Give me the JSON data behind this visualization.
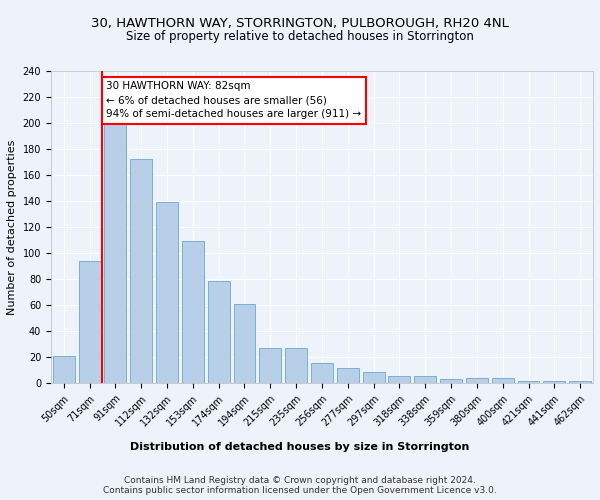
{
  "title": "30, HAWTHORN WAY, STORRINGTON, PULBOROUGH, RH20 4NL",
  "subtitle": "Size of property relative to detached houses in Storrington",
  "xlabel": "Distribution of detached houses by size in Storrington",
  "ylabel": "Number of detached properties",
  "bar_labels": [
    "50sqm",
    "71sqm",
    "91sqm",
    "112sqm",
    "132sqm",
    "153sqm",
    "174sqm",
    "194sqm",
    "215sqm",
    "235sqm",
    "256sqm",
    "277sqm",
    "297sqm",
    "318sqm",
    "338sqm",
    "359sqm",
    "380sqm",
    "400sqm",
    "421sqm",
    "441sqm",
    "462sqm"
  ],
  "bar_values": [
    21,
    94,
    202,
    172,
    139,
    109,
    79,
    61,
    27,
    27,
    16,
    12,
    9,
    6,
    6,
    3,
    4,
    4,
    2,
    2,
    2
  ],
  "bar_color": "#b8cfe8",
  "bar_edge_color": "#7aafd4",
  "vline_x": 1.5,
  "annotation_text": "30 HAWTHORN WAY: 82sqm\n← 6% of detached houses are smaller (56)\n94% of semi-detached houses are larger (911) →",
  "annotation_box_color": "white",
  "annotation_box_edge_color": "red",
  "vline_color": "red",
  "ylim": [
    0,
    240
  ],
  "yticks": [
    0,
    20,
    40,
    60,
    80,
    100,
    120,
    140,
    160,
    180,
    200,
    220,
    240
  ],
  "footer_line1": "Contains HM Land Registry data © Crown copyright and database right 2024.",
  "footer_line2": "Contains public sector information licensed under the Open Government Licence v3.0.",
  "background_color": "#eef2fb",
  "grid_color": "white",
  "title_fontsize": 9.5,
  "subtitle_fontsize": 8.5,
  "ylabel_fontsize": 8,
  "xlabel_fontsize": 8,
  "tick_fontsize": 7,
  "annotation_fontsize": 7.5,
  "footer_fontsize": 6.5
}
